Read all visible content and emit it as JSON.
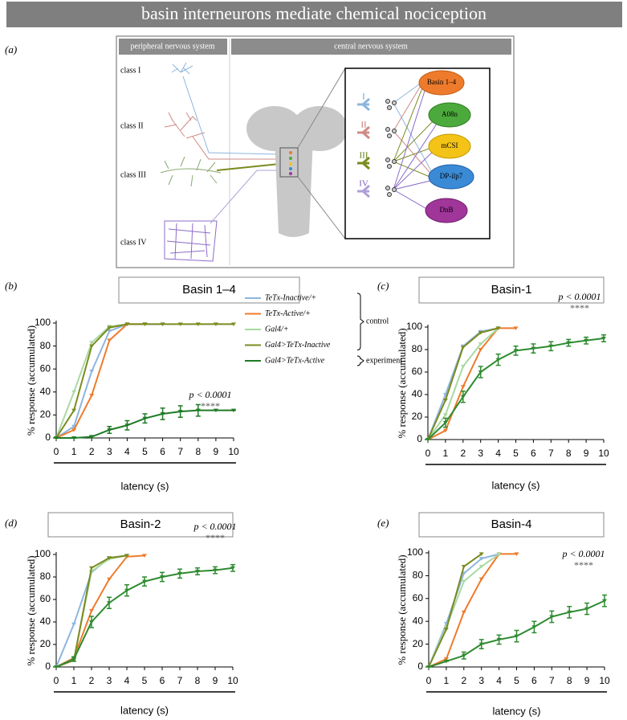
{
  "header": {
    "title": "basin interneurons mediate chemical nociception"
  },
  "figure_a": {
    "label": "(a)",
    "pns_title": "peripheral nervous system",
    "cns_title": "central nervous system",
    "neuron_classes": [
      "class I",
      "class II",
      "class III",
      "class IV"
    ],
    "inputs": [
      "I",
      "II",
      "III",
      "IV"
    ],
    "targets": [
      "Basin 1–4",
      "A08n",
      "mCSI",
      "DP-ilp7",
      "DnB"
    ]
  },
  "chart_data": [
    {
      "type": "line",
      "panel_label": "(b)",
      "title": "Basin 1–4",
      "xlabel": "latency (s)",
      "ylabel": "% response (accumulated)",
      "x": [
        0,
        1,
        2,
        3,
        4,
        5,
        6,
        7,
        8,
        9,
        10
      ],
      "xlim": [
        0,
        10
      ],
      "ylim": [
        0,
        100
      ],
      "xticks": [
        0,
        1,
        2,
        3,
        4,
        5,
        6,
        7,
        8,
        9,
        10
      ],
      "yticks": [
        0,
        20,
        40,
        60,
        80,
        100
      ],
      "annotations": [
        "p < 0.0001",
        "****"
      ],
      "series": [
        {
          "name": "TeTx-Inactive/+",
          "group": "control",
          "color": "#8db6de",
          "values": [
            0,
            10,
            58,
            93,
            99,
            99,
            99,
            null,
            null,
            null,
            null
          ]
        },
        {
          "name": "TeTx-Active/+",
          "group": "control",
          "color": "#ee7b2c",
          "values": [
            0,
            7,
            37,
            85,
            99,
            99,
            null,
            null,
            null,
            null,
            null
          ]
        },
        {
          "name": "Gal4/+",
          "group": "control",
          "color": "#a9d9a1",
          "values": [
            0,
            40,
            83,
            97,
            99,
            null,
            null,
            null,
            null,
            null,
            null
          ]
        },
        {
          "name": "Gal4>TeTx-Inactive",
          "group": "control",
          "color": "#7b8b20",
          "values": [
            0,
            24,
            80,
            96,
            99,
            99,
            99,
            99,
            99,
            99,
            99
          ]
        },
        {
          "name": "Gal4>TeTx-Active",
          "group": "experiment",
          "color": "#1f7a26",
          "values": [
            0,
            0,
            1,
            7,
            11,
            17,
            21,
            23,
            24,
            24,
            24
          ],
          "errors": [
            0,
            0,
            1,
            3,
            4,
            4,
            5,
            5,
            5,
            0,
            0
          ]
        }
      ]
    },
    {
      "type": "line",
      "panel_label": "(c)",
      "title": "Basin-1",
      "xlabel": "latency (s)",
      "ylabel": "% response (accumulated)",
      "x": [
        0,
        1,
        2,
        3,
        4,
        5,
        6,
        7,
        8,
        9,
        10
      ],
      "xlim": [
        0,
        10
      ],
      "ylim": [
        0,
        100
      ],
      "xticks": [
        0,
        1,
        2,
        3,
        4,
        5,
        6,
        7,
        8,
        9,
        10
      ],
      "yticks": [
        0,
        20,
        40,
        60,
        80,
        100
      ],
      "annotations": [
        "p < 0.0001",
        "****"
      ],
      "series": [
        {
          "color": "#8db6de",
          "values": [
            0,
            40,
            83,
            96,
            99,
            null,
            null,
            null,
            null,
            null,
            null
          ]
        },
        {
          "color": "#ee7b2c",
          "values": [
            0,
            8,
            47,
            80,
            99,
            99,
            null,
            null,
            null,
            null,
            null
          ]
        },
        {
          "color": "#a9d9a1",
          "values": [
            0,
            22,
            65,
            85,
            99,
            null,
            null,
            null,
            null,
            null,
            null
          ]
        },
        {
          "color": "#7b8b20",
          "values": [
            0,
            35,
            82,
            95,
            99,
            null,
            null,
            null,
            null,
            null,
            null
          ]
        },
        {
          "color": "#2e8b30",
          "values": [
            0,
            15,
            38,
            60,
            71,
            79,
            81,
            83,
            86,
            88,
            90
          ],
          "errors": [
            0,
            4,
            5,
            5,
            5,
            4,
            4,
            4,
            3,
            3,
            3
          ]
        }
      ]
    },
    {
      "type": "line",
      "panel_label": "(d)",
      "title": "Basin-2",
      "xlabel": "latency (s)",
      "ylabel": "% response (accumulated)",
      "x": [
        0,
        1,
        2,
        3,
        4,
        5,
        6,
        7,
        8,
        9,
        10
      ],
      "xlim": [
        0,
        10
      ],
      "ylim": [
        0,
        100
      ],
      "xticks": [
        0,
        1,
        2,
        3,
        4,
        5,
        6,
        7,
        8,
        9,
        10
      ],
      "yticks": [
        0,
        20,
        40,
        60,
        80,
        100
      ],
      "annotations": [
        "p < 0.0001",
        "****"
      ],
      "series": [
        {
          "color": "#8db6de",
          "values": [
            0,
            38,
            84,
            97,
            99,
            null,
            null,
            null,
            null,
            null,
            null
          ]
        },
        {
          "color": "#ee7b2c",
          "values": [
            0,
            8,
            50,
            78,
            98,
            99,
            null,
            null,
            null,
            null,
            null
          ]
        },
        {
          "color": "#a9d9a1",
          "values": [
            0,
            6,
            85,
            96,
            99,
            null,
            null,
            null,
            null,
            null,
            null
          ]
        },
        {
          "color": "#7b8b20",
          "values": [
            0,
            6,
            88,
            97,
            99,
            null,
            null,
            null,
            null,
            null,
            null
          ]
        },
        {
          "color": "#2e8b30",
          "values": [
            0,
            7,
            40,
            57,
            68,
            76,
            80,
            83,
            85,
            86,
            88
          ],
          "errors": [
            0,
            2,
            5,
            5,
            5,
            4,
            4,
            4,
            3,
            3,
            3
          ]
        }
      ]
    },
    {
      "type": "line",
      "panel_label": "(e)",
      "title": "Basin-4",
      "xlabel": "latency (s)",
      "ylabel": "% response (accumulated)",
      "x": [
        0,
        1,
        2,
        3,
        4,
        5,
        6,
        7,
        8,
        9,
        10
      ],
      "xlim": [
        0,
        10
      ],
      "ylim": [
        0,
        100
      ],
      "xticks": [
        0,
        1,
        2,
        3,
        4,
        5,
        6,
        7,
        8,
        9,
        10
      ],
      "yticks": [
        0,
        20,
        40,
        60,
        80,
        100
      ],
      "annotations": [
        "p < 0.0001",
        "****"
      ],
      "series": [
        {
          "color": "#8db6de",
          "values": [
            0,
            38,
            82,
            95,
            99,
            null,
            null,
            null,
            null,
            null,
            null
          ]
        },
        {
          "color": "#ee7b2c",
          "values": [
            0,
            7,
            48,
            77,
            99,
            99,
            null,
            null,
            null,
            null,
            null
          ]
        },
        {
          "color": "#a9d9a1",
          "values": [
            0,
            35,
            75,
            88,
            99,
            null,
            null,
            null,
            null,
            null,
            null
          ]
        },
        {
          "color": "#7b8b20",
          "values": [
            0,
            33,
            88,
            99,
            null,
            null,
            null,
            null,
            null,
            null,
            null
          ]
        },
        {
          "color": "#2e8b30",
          "values": [
            0,
            5,
            10,
            20,
            24,
            27,
            35,
            44,
            48,
            51,
            58
          ],
          "errors": [
            0,
            0,
            3,
            4,
            4,
            5,
            5,
            5,
            5,
            5,
            5
          ]
        }
      ]
    }
  ]
}
